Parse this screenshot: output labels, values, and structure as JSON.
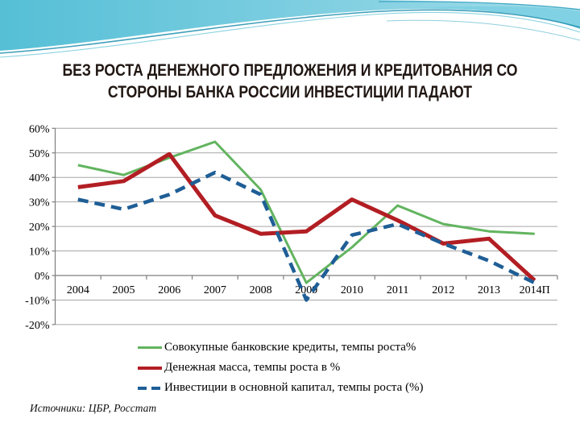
{
  "slide": {
    "title_line1": "БЕЗ РОСТА ДЕНЕЖНОГО ПРЕДЛОЖЕНИЯ И КРЕДИТОВАНИЯ СО",
    "title_line2": "СТОРОНЫ БАНКА РОССИИ ИНВЕСТИЦИИ ПАДАЮТ",
    "source_note": "Источники: ЦБР, Росстат"
  },
  "chart_data": {
    "type": "line",
    "title": "",
    "categories": [
      "2004",
      "2005",
      "2006",
      "2007",
      "2008",
      "2009",
      "2010",
      "2011",
      "2012",
      "2013",
      "2014П"
    ],
    "series": [
      {
        "name": "Совокупные банковские кредиты, темпы роста%",
        "color": "#62b45f",
        "dash": "solid",
        "width": 3,
        "values": [
          45,
          41,
          48,
          54.5,
          35,
          -3,
          11.5,
          28.5,
          21,
          18,
          17
        ]
      },
      {
        "name": "Денежная масса, темпы роста в %",
        "color": "#b21e23",
        "dash": "solid",
        "width": 5,
        "values": [
          36,
          38.5,
          49.5,
          24.5,
          17,
          18,
          31,
          22.5,
          13,
          15,
          -2
        ]
      },
      {
        "name": "Инвестиции в основной капитал, темпы роста (%)",
        "color": "#1f5e96",
        "dash": "dashed",
        "width": 4.5,
        "values": [
          31,
          27,
          33,
          42,
          33,
          -10,
          16.5,
          21,
          13,
          6,
          -3
        ]
      }
    ],
    "ylim": [
      -20,
      60
    ],
    "ytick_step": 10,
    "ytick_labels": [
      "60%",
      "50%",
      "40%",
      "30%",
      "20%",
      "10%",
      "0%",
      "-10%",
      "-20%"
    ],
    "grid": true,
    "grid_color": "#a6a6a6",
    "axis_color": "#7f7f7f",
    "label_color": "#000000",
    "legend_position": "bottom"
  },
  "theme": {
    "title_color": "#211713",
    "wave_main": "#55bfd6",
    "wave_light": "#a2dcea",
    "wave_band": "#7ccfe2",
    "wave_accent": "#1d8fae",
    "wave_accent_light": "#5bc1d4",
    "background": "#ffffff"
  }
}
